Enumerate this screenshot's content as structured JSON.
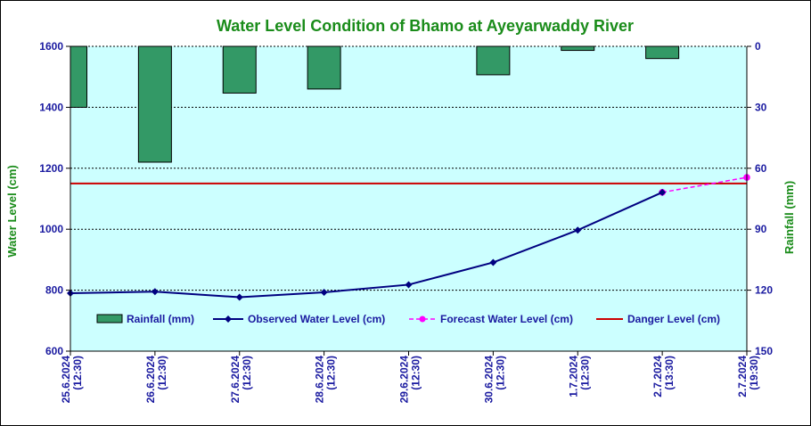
{
  "colors": {
    "plot_bg": "#ccffff",
    "rainfall": "#339966",
    "observed": "#000080",
    "forecast": "#ff00ff",
    "danger": "#cc0000",
    "title": "#1a8c1a",
    "ticks": "#1a1aa0"
  },
  "chart_data": {
    "type": "line",
    "title": "Water Level Condition of Bhamo at  Ayeyarwaddy River",
    "ylabel": "Water Level (cm)",
    "y2label": "Rainfall (mm)",
    "ylim": [
      600,
      1600
    ],
    "y2lim": [
      0,
      150
    ],
    "y2_inverted": true,
    "yticks": [
      "1600",
      "1400",
      "1200",
      "1000",
      "800",
      "600"
    ],
    "y2ticks": [
      "0",
      "30",
      "60",
      "90",
      "120",
      "150"
    ],
    "grid": true,
    "legend_placement": "inside-bottom",
    "categories": [
      [
        "25.6.2024",
        "(12:30)"
      ],
      [
        "26.6.2024",
        "(12:30)"
      ],
      [
        "27.6.2024",
        "(12:30)"
      ],
      [
        "28.6.2024",
        "(12:30)"
      ],
      [
        "29.6.2024",
        "(12:30)"
      ],
      [
        "30.6.2024",
        "(12:30)"
      ],
      [
        "1.7.2024",
        "(12:30)"
      ],
      [
        "2.7.2024",
        "(13:30)"
      ],
      [
        "2.7.2024",
        "(19:30)"
      ]
    ],
    "series": [
      {
        "name": "Rainfall (mm)",
        "type": "bar",
        "axis": "y2",
        "values": [
          30,
          57,
          23,
          21,
          0,
          14,
          2,
          6,
          null
        ]
      },
      {
        "name": "Observed Water Level (cm)",
        "type": "line",
        "axis": "y",
        "values": [
          790,
          795,
          777,
          793,
          818,
          891,
          997,
          1121,
          null
        ]
      },
      {
        "name": "Forecast Water Level (cm)",
        "type": "line",
        "axis": "y",
        "dashed": true,
        "values": [
          null,
          null,
          null,
          null,
          null,
          null,
          null,
          1121,
          1170
        ]
      },
      {
        "name": "Danger Level (cm)",
        "type": "hline",
        "axis": "y",
        "value": 1150
      }
    ]
  }
}
